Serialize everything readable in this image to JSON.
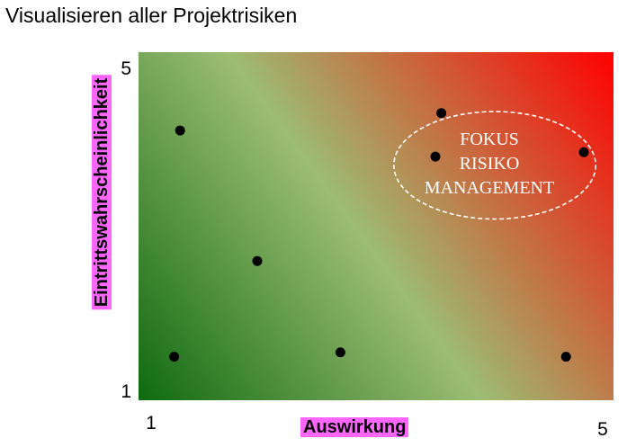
{
  "title": "Visualisieren aller Projektrisiken",
  "colors": {
    "label_highlight": "#ff66ff",
    "gradient_low": "#0f6a10",
    "gradient_mid": "#9cbd72",
    "gradient_high": "#ff0000",
    "point": "#000000",
    "ellipse": "#ffffff"
  },
  "chart_data": {
    "type": "scatter",
    "title": "Visualisieren aller Projektrisiken",
    "xlabel": "Auswirkung",
    "ylabel": "Eintrittswahrscheinlichkeit",
    "xlim": [
      1,
      5
    ],
    "ylim": [
      1,
      5
    ],
    "x_ticks": [
      "1",
      "5"
    ],
    "y_ticks": [
      "1",
      "5"
    ],
    "grid": false,
    "points": [
      {
        "x": 1.35,
        "y": 4.1
      },
      {
        "x": 2.0,
        "y": 2.6
      },
      {
        "x": 1.3,
        "y": 1.5
      },
      {
        "x": 2.7,
        "y": 1.55
      },
      {
        "x": 3.55,
        "y": 4.3
      },
      {
        "x": 3.5,
        "y": 3.8
      },
      {
        "x": 4.75,
        "y": 3.85
      },
      {
        "x": 4.6,
        "y": 1.5
      }
    ],
    "focus_region": {
      "center": [
        4.0,
        3.7
      ],
      "radius": [
        1.0,
        0.95
      ],
      "label_lines": [
        "FOKUS",
        "RISIKO",
        "MANAGEMENT"
      ]
    }
  }
}
